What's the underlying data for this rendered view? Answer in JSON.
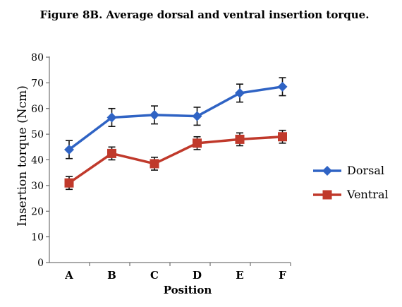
{
  "chart_data": {
    "type": "line",
    "title": "Figure 8B. Average dorsal and ventral insertion torque.",
    "xlabel": "Position",
    "ylabel": "Insertion torque (Ncm)",
    "categories": [
      "A",
      "B",
      "C",
      "D",
      "E",
      "F"
    ],
    "ylim": [
      0,
      80
    ],
    "yticks": [
      0,
      10,
      20,
      30,
      40,
      50,
      60,
      70,
      80
    ],
    "grid": false,
    "legend_position": "right",
    "series": [
      {
        "name": "Dorsal",
        "color": "#2f63c4",
        "marker": "diamond",
        "values": [
          44,
          56.5,
          57.5,
          57,
          66,
          68.5
        ],
        "errors": [
          3.5,
          3.5,
          3.5,
          3.5,
          3.5,
          3.5
        ]
      },
      {
        "name": "Ventral",
        "color": "#c0392b",
        "marker": "square",
        "values": [
          31,
          42.5,
          38.5,
          46.5,
          48,
          49
        ],
        "errors": [
          2.5,
          2.5,
          2.5,
          2.5,
          2.5,
          2.5
        ]
      }
    ]
  }
}
